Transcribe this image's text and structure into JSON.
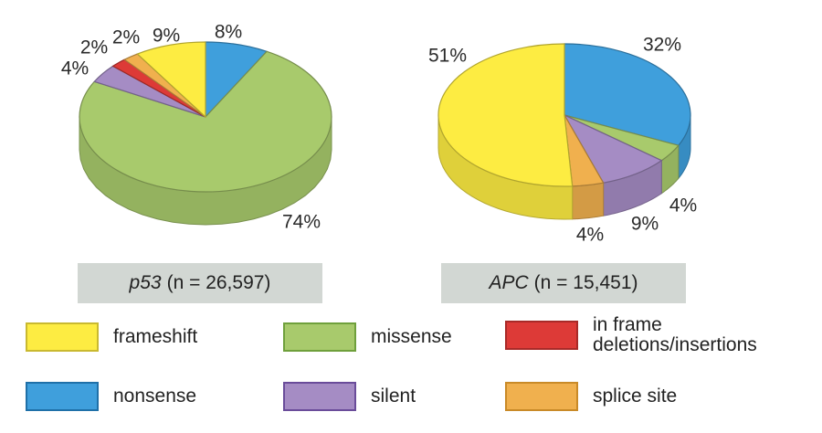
{
  "colors": {
    "frameshift": "#fdec42",
    "missense": "#a8ca6c",
    "in_frame": "#dd3a37",
    "nonsense": "#3f9fdc",
    "silent": "#a58cc4",
    "splice_site": "#f0b04e"
  },
  "captions": {
    "p53": {
      "gene": "p53",
      "n": "(n = 26,597)"
    },
    "apc": {
      "gene": "APC",
      "n": "(n = 15,451)"
    }
  },
  "legend": [
    {
      "key": "frameshift",
      "label": "frameshift",
      "swatch_color": "#fdec42",
      "border_color": "#c9b930"
    },
    {
      "key": "missense",
      "label": "missense",
      "swatch_color": "#a8ca6c",
      "border_color": "#6fa03c"
    },
    {
      "key": "in_frame",
      "label": "in frame deletions/insertions",
      "swatch_color": "#dd3a37",
      "border_color": "#a82a28"
    },
    {
      "key": "nonsense",
      "label": "nonsense",
      "swatch_color": "#3f9fdc",
      "border_color": "#1f70a8"
    },
    {
      "key": "silent",
      "label": "silent",
      "swatch_color": "#a58cc4",
      "border_color": "#6a4c9a"
    },
    {
      "key": "splice_site",
      "label": "splice site",
      "swatch_color": "#f0b04e",
      "border_color": "#c98a28"
    }
  ],
  "chart_data": [
    {
      "type": "pie",
      "title": "p53 (n = 26,597)",
      "slices": [
        {
          "name": "nonsense",
          "value": 8,
          "label": "8%",
          "color": "#3f9fdc"
        },
        {
          "name": "missense",
          "value": 74,
          "label": "74%",
          "color": "#a8ca6c"
        },
        {
          "name": "silent",
          "value": 4,
          "label": "4%",
          "color": "#a58cc4"
        },
        {
          "name": "in frame deletions/insertions",
          "value": 2,
          "label": "2%",
          "color": "#dd3a37"
        },
        {
          "name": "splice site",
          "value": 2,
          "label": "2%",
          "color": "#f0b04e"
        },
        {
          "name": "frameshift",
          "value": 9,
          "label": "9%",
          "color": "#fdec42"
        }
      ]
    },
    {
      "type": "pie",
      "title": "APC (n = 15,451)",
      "slices": [
        {
          "name": "nonsense",
          "value": 32,
          "label": "32%",
          "color": "#3f9fdc"
        },
        {
          "name": "missense",
          "value": 4,
          "label": "4%",
          "color": "#a8ca6c"
        },
        {
          "name": "silent",
          "value": 9,
          "label": "9%",
          "color": "#a58cc4"
        },
        {
          "name": "splice site",
          "value": 4,
          "label": "4%",
          "color": "#f0b04e"
        },
        {
          "name": "frameshift",
          "value": 51,
          "label": "51%",
          "color": "#fdec42"
        }
      ]
    }
  ]
}
